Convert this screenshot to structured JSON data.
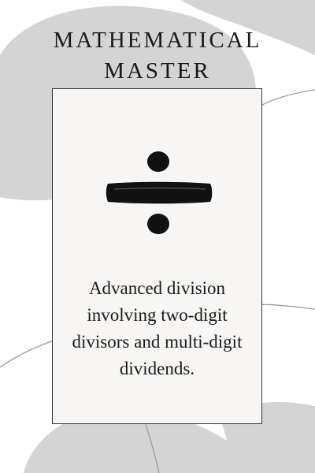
{
  "title": {
    "line1": "MATHEMATICAL",
    "line2": "MASTER"
  },
  "card": {
    "icon": "division-sign-icon",
    "description": "Advanced division involving two-digit divisors and multi-digit dividends."
  },
  "colors": {
    "background": "#ffffff",
    "blob": "#d4d4d4",
    "card": "#f7f6f4",
    "text": "#1a1a1a",
    "ink": "#111111"
  }
}
